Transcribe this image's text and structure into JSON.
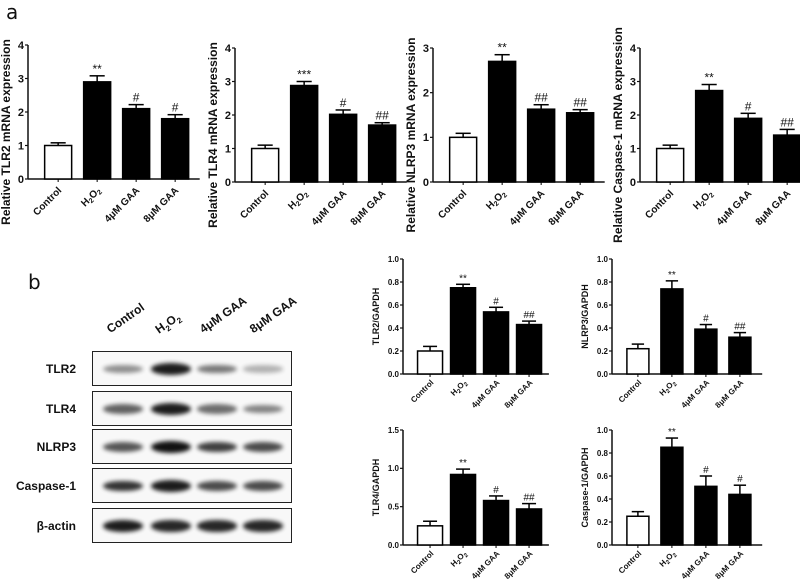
{
  "panels": {
    "a": {
      "label": "a"
    },
    "b": {
      "label": "b"
    }
  },
  "blot": {
    "lanes": [
      "Control",
      "H2O2",
      "4μM GAA",
      "8μM GAA"
    ],
    "rows": [
      {
        "label": "TLR2",
        "intensity": [
          0.45,
          0.95,
          0.55,
          0.3
        ]
      },
      {
        "label": "TLR4",
        "intensity": [
          0.65,
          0.95,
          0.6,
          0.5
        ]
      },
      {
        "label": "NLRP3",
        "intensity": [
          0.7,
          1.0,
          0.8,
          0.75
        ]
      },
      {
        "label": "Caspase-1",
        "intensity": [
          0.85,
          0.95,
          0.75,
          0.75
        ]
      },
      {
        "label": "β-actin",
        "intensity": [
          0.95,
          0.9,
          0.9,
          0.9
        ]
      }
    ]
  },
  "chart_data": [
    {
      "id": "tlr2-mrna",
      "type": "bar",
      "ylabel": "Relative TLR2 mRNA expression",
      "categories": [
        "Control",
        "H2O2",
        "4μM GAA",
        "8μM GAA"
      ],
      "values": [
        1.0,
        2.9,
        2.1,
        1.8
      ],
      "errors": [
        0.08,
        0.18,
        0.12,
        0.12
      ],
      "annotations": [
        "",
        "**",
        "#",
        "#"
      ],
      "ylim": [
        0,
        4
      ],
      "yticks": [
        0,
        1,
        2,
        3,
        4
      ]
    },
    {
      "id": "tlr4-mrna",
      "type": "bar",
      "ylabel": "Relative TLR4 mRNA expression",
      "categories": [
        "Control",
        "H2O2",
        "4μM GAA",
        "8μM GAA"
      ],
      "values": [
        1.0,
        2.88,
        2.02,
        1.7
      ],
      "errors": [
        0.1,
        0.12,
        0.13,
        0.07
      ],
      "annotations": [
        "",
        "***",
        "#",
        "##"
      ],
      "ylim": [
        0,
        4
      ],
      "yticks": [
        0,
        1,
        2,
        3,
        4
      ]
    },
    {
      "id": "nlrp3-mrna",
      "type": "bar",
      "ylabel": "Relative NLRP3 mRNA expression",
      "categories": [
        "Control",
        "H2O2",
        "4μM GAA",
        "8μM GAA"
      ],
      "values": [
        1.0,
        2.7,
        1.63,
        1.55
      ],
      "errors": [
        0.09,
        0.15,
        0.1,
        0.07
      ],
      "annotations": [
        "",
        "**",
        "##",
        "##"
      ],
      "ylim": [
        0,
        3
      ],
      "yticks": [
        0,
        1,
        2,
        3
      ]
    },
    {
      "id": "caspase1-mrna",
      "type": "bar",
      "ylabel": "Relative Caspase-1 mRNA expression",
      "categories": [
        "Control",
        "H2O2",
        "4μM GAA",
        "8μM GAA"
      ],
      "values": [
        1.0,
        2.73,
        1.9,
        1.4
      ],
      "errors": [
        0.1,
        0.18,
        0.15,
        0.17
      ],
      "annotations": [
        "",
        "**",
        "#",
        "##"
      ],
      "ylim": [
        0,
        4
      ],
      "yticks": [
        0,
        1,
        2,
        3,
        4
      ]
    },
    {
      "id": "tlr2-gapdh",
      "type": "bar",
      "ylabel": "TLR2/GAPDH",
      "categories": [
        "Control",
        "H2O2",
        "4μM GAA",
        "8μM GAA"
      ],
      "values": [
        0.2,
        0.75,
        0.54,
        0.43
      ],
      "errors": [
        0.04,
        0.03,
        0.04,
        0.03
      ],
      "annotations": [
        "",
        "**",
        "#",
        "##"
      ],
      "ylim": [
        0,
        1.0
      ],
      "yticks": [
        0.0,
        0.2,
        0.4,
        0.6,
        0.8,
        1.0
      ]
    },
    {
      "id": "nlrp3-gapdh",
      "type": "bar",
      "ylabel": "NLRP3/GAPDH",
      "categories": [
        "Control",
        "H2O2",
        "4μM GAA",
        "8μM GAA"
      ],
      "values": [
        0.22,
        0.74,
        0.39,
        0.32
      ],
      "errors": [
        0.04,
        0.07,
        0.04,
        0.04
      ],
      "annotations": [
        "",
        "**",
        "#",
        "##"
      ],
      "ylim": [
        0,
        1.0
      ],
      "yticks": [
        0.0,
        0.2,
        0.4,
        0.6,
        0.8,
        1.0
      ]
    },
    {
      "id": "tlr4-gapdh",
      "type": "bar",
      "ylabel": "TLR4/GAPDH",
      "categories": [
        "Control",
        "H2O2",
        "4μM GAA",
        "8μM GAA"
      ],
      "values": [
        0.25,
        0.92,
        0.58,
        0.47
      ],
      "errors": [
        0.06,
        0.07,
        0.06,
        0.07
      ],
      "annotations": [
        "",
        "**",
        "#",
        "##"
      ],
      "ylim": [
        0,
        1.5
      ],
      "yticks": [
        0.0,
        0.5,
        1.0,
        1.5
      ]
    },
    {
      "id": "caspase1-gapdh",
      "type": "bar",
      "ylabel": "Caspase-1/GAPDH",
      "categories": [
        "Control",
        "H2O2",
        "4μM GAA",
        "8μM GAA"
      ],
      "values": [
        0.25,
        0.85,
        0.51,
        0.44
      ],
      "errors": [
        0.04,
        0.08,
        0.09,
        0.08
      ],
      "annotations": [
        "",
        "**",
        "#",
        "#"
      ],
      "ylim": [
        0,
        1.0
      ],
      "yticks": [
        0.0,
        0.2,
        0.4,
        0.6,
        0.8,
        1.0
      ]
    }
  ]
}
